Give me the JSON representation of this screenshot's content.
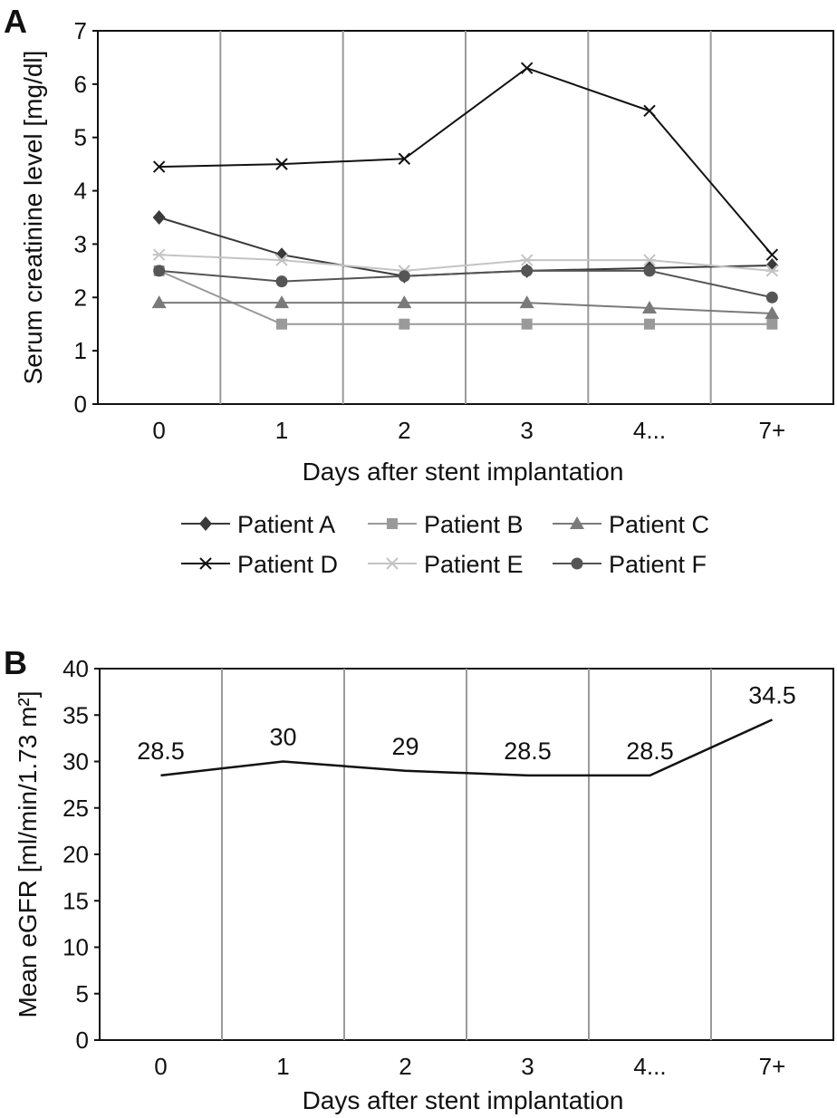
{
  "chart_data": [
    {
      "panel_label": "A",
      "type": "line",
      "categories": [
        "0",
        "1",
        "2",
        "3",
        "4...",
        "7+"
      ],
      "xlabel": "Days after stent implantation",
      "ylabel": "Serum creatinine level [mg/dl]",
      "ylim": [
        0,
        7
      ],
      "yticks": [
        0,
        1,
        2,
        3,
        4,
        5,
        6,
        7
      ],
      "grid": "vertical lines between categories",
      "legend_position": "bottom",
      "series": [
        {
          "name": "Patient A",
          "marker": "diamond",
          "color": "#3a3a3a",
          "values": [
            3.5,
            2.8,
            2.4,
            2.5,
            2.55,
            2.6
          ]
        },
        {
          "name": "Patient B",
          "marker": "square",
          "color": "#9a9a9a",
          "values": [
            2.5,
            1.5,
            1.5,
            1.5,
            1.5,
            1.5
          ]
        },
        {
          "name": "Patient C",
          "marker": "triangle",
          "color": "#7a7a7a",
          "values": [
            1.9,
            1.9,
            1.9,
            1.9,
            1.8,
            1.7
          ]
        },
        {
          "name": "Patient D",
          "marker": "x",
          "color": "#111111",
          "values": [
            4.45,
            4.5,
            4.6,
            6.3,
            5.5,
            2.8
          ]
        },
        {
          "name": "Patient E",
          "marker": "star",
          "color": "#c4c4c4",
          "values": [
            2.8,
            2.7,
            2.5,
            2.7,
            2.7,
            2.5
          ]
        },
        {
          "name": "Patient F",
          "marker": "circle",
          "color": "#555555",
          "values": [
            2.5,
            2.3,
            2.4,
            2.5,
            2.5,
            2.0
          ]
        }
      ]
    },
    {
      "panel_label": "B",
      "type": "line",
      "categories": [
        "0",
        "1",
        "2",
        "3",
        "4...",
        "7+"
      ],
      "xlabel": "Days after stent implantation",
      "ylabel": "Mean eGFR [ml/min/1.73 m²]",
      "ylim": [
        0,
        40
      ],
      "yticks": [
        0,
        5,
        10,
        15,
        20,
        25,
        30,
        35,
        40
      ],
      "grid": "vertical lines between categories",
      "series": [
        {
          "color": "#111111",
          "values": [
            28.5,
            30,
            29,
            28.5,
            28.5,
            34.5
          ],
          "labels": [
            "28.5",
            "30",
            "29",
            "28.5",
            "28.5",
            "34.5"
          ]
        }
      ]
    }
  ]
}
